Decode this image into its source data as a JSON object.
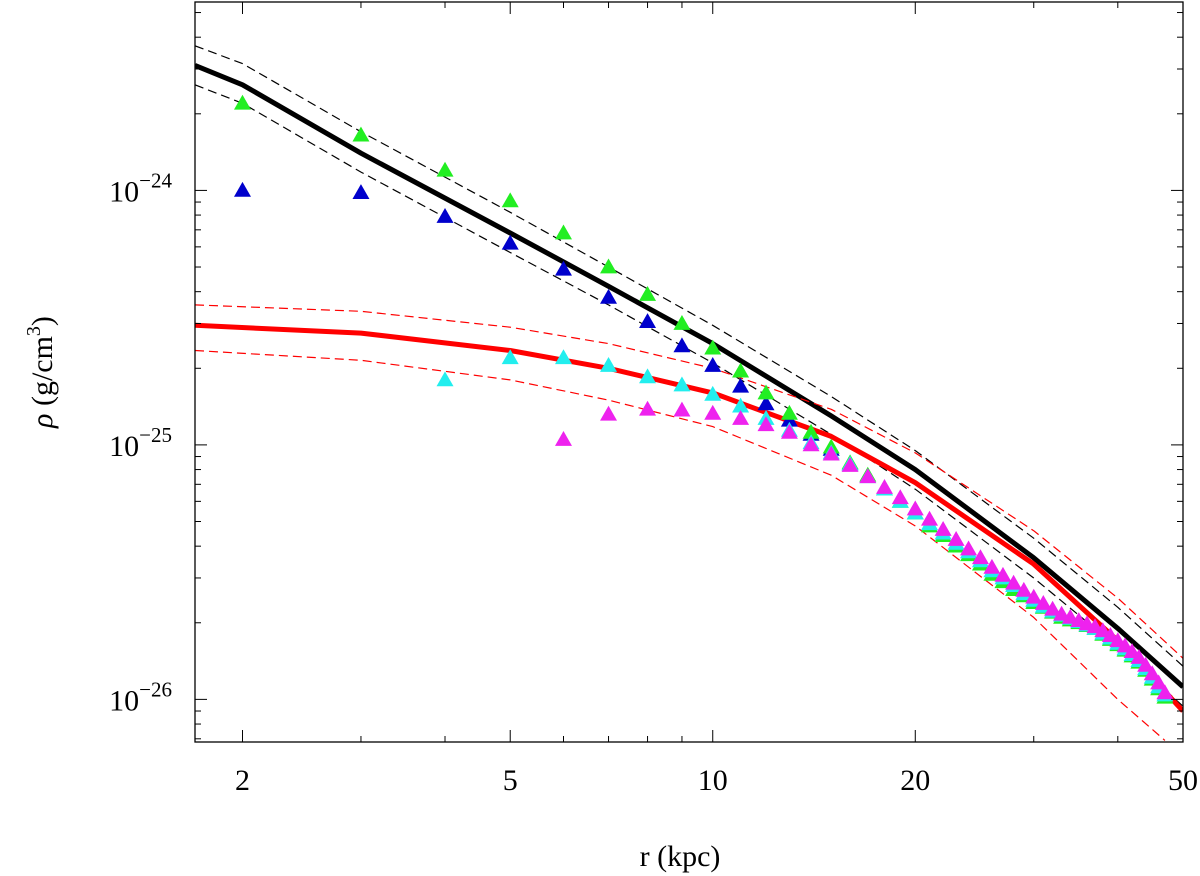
{
  "chart_data": {
    "type": "scatter",
    "xlabel": "r (kpc)",
    "ylabel": {
      "symbol": "ρ",
      "unit": " (g/cm",
      "exp": "3",
      "close": ")"
    },
    "xscale": "log",
    "yscale": "log",
    "xlim": [
      1.7,
      50
    ],
    "ylim": [
      6.8e-27,
      5.5e-24
    ],
    "grid": false,
    "legend": "none",
    "x_ticks": [
      {
        "value": 2,
        "label": "2"
      },
      {
        "value": 5,
        "label": "5"
      },
      {
        "value": 10,
        "label": "10"
      },
      {
        "value": 20,
        "label": "20"
      },
      {
        "value": 50,
        "label": "50"
      }
    ],
    "y_ticks": [
      {
        "value": 1e-24,
        "base": "10",
        "exp": "−24"
      },
      {
        "value": 1e-25,
        "base": "10",
        "exp": "−25"
      },
      {
        "value": 1e-26,
        "base": "10",
        "exp": "−26"
      }
    ],
    "colors": {
      "black_curve": "#000000",
      "red_curve": "#ff0000",
      "green": "#22ee22",
      "blue": "#0000cc",
      "cyan": "#22eeee",
      "magenta": "#ee22ee"
    },
    "curves": [
      {
        "color": "#000000",
        "style": "solid",
        "width": 5,
        "points": [
          [
            1.7,
            3.1e-24
          ],
          [
            2,
            2.6e-24
          ],
          [
            3,
            1.4e-24
          ],
          [
            5,
            6.8e-25
          ],
          [
            7,
            4.2e-25
          ],
          [
            10,
            2.5e-25
          ],
          [
            15,
            1.3e-25
          ],
          [
            20,
            8e-26
          ],
          [
            30,
            3.6e-26
          ],
          [
            40,
            1.9e-26
          ],
          [
            50,
            1.12e-26
          ]
        ]
      },
      {
        "color": "#000000",
        "style": "dashed",
        "width": 1.2,
        "points": [
          [
            1.7,
            3.7e-24
          ],
          [
            2,
            3.15e-24
          ],
          [
            3,
            1.7e-24
          ],
          [
            5,
            8.2e-25
          ],
          [
            7,
            5e-25
          ],
          [
            10,
            2.95e-25
          ],
          [
            15,
            1.55e-25
          ],
          [
            20,
            9.5e-26
          ],
          [
            30,
            4.3e-26
          ],
          [
            40,
            2.3e-26
          ],
          [
            50,
            1.35e-26
          ]
        ]
      },
      {
        "color": "#000000",
        "style": "dashed",
        "width": 1.2,
        "points": [
          [
            1.7,
            2.6e-24
          ],
          [
            2,
            2.2e-24
          ],
          [
            3,
            1.18e-24
          ],
          [
            5,
            5.7e-25
          ],
          [
            7,
            3.55e-25
          ],
          [
            10,
            2.1e-25
          ],
          [
            15,
            1.1e-25
          ],
          [
            20,
            6.7e-26
          ],
          [
            30,
            3e-26
          ],
          [
            40,
            1.6e-26
          ],
          [
            50,
            9.4e-27
          ]
        ]
      },
      {
        "color": "#ff0000",
        "style": "solid",
        "width": 5,
        "points": [
          [
            1.7,
            2.95e-25
          ],
          [
            3,
            2.75e-25
          ],
          [
            5,
            2.35e-25
          ],
          [
            7,
            2e-25
          ],
          [
            10,
            1.6e-25
          ],
          [
            15,
            1.08e-25
          ],
          [
            20,
            7.1e-26
          ],
          [
            30,
            3.4e-26
          ],
          [
            40,
            1.7e-26
          ],
          [
            50,
            9e-27
          ]
        ]
      },
      {
        "color": "#ff0000",
        "style": "dashed",
        "width": 1.2,
        "points": [
          [
            1.7,
            3.55e-25
          ],
          [
            3,
            3.35e-25
          ],
          [
            5,
            2.9e-25
          ],
          [
            7,
            2.5e-25
          ],
          [
            10,
            2e-25
          ],
          [
            15,
            1.38e-25
          ],
          [
            20,
            9.3e-26
          ],
          [
            30,
            4.6e-26
          ],
          [
            40,
            2.5e-26
          ],
          [
            50,
            1.45e-26
          ]
        ]
      },
      {
        "color": "#ff0000",
        "style": "dashed",
        "width": 1.2,
        "points": [
          [
            1.7,
            2.35e-25
          ],
          [
            3,
            2.15e-25
          ],
          [
            5,
            1.8e-25
          ],
          [
            7,
            1.5e-25
          ],
          [
            10,
            1.18e-25
          ],
          [
            15,
            7.6e-26
          ],
          [
            20,
            4.8e-26
          ],
          [
            30,
            2.1e-26
          ],
          [
            40,
            1e-26
          ],
          [
            47,
            6.9e-27
          ]
        ]
      }
    ],
    "series": [
      {
        "color": "#0000cc",
        "points": [
          [
            2,
            1e-24
          ],
          [
            3,
            9.8e-25
          ],
          [
            4,
            7.9e-25
          ],
          [
            5,
            6.2e-25
          ],
          [
            6,
            4.9e-25
          ],
          [
            7,
            3.8e-25
          ],
          [
            8,
            3.05e-25
          ],
          [
            9,
            2.45e-25
          ],
          [
            10,
            2.05e-25
          ],
          [
            11,
            1.7e-25
          ],
          [
            12,
            1.45e-25
          ],
          [
            13,
            1.25e-25
          ],
          [
            14,
            1.1e-25
          ],
          [
            15,
            9.6e-26
          ],
          [
            16,
            8.4e-26
          ]
        ]
      },
      {
        "color": "#22ee22",
        "points": [
          [
            2,
            2.2e-24
          ],
          [
            3,
            1.65e-24
          ],
          [
            4,
            1.2e-24
          ],
          [
            5,
            9.1e-25
          ],
          [
            6,
            6.8e-25
          ],
          [
            7,
            5e-25
          ],
          [
            8,
            3.9e-25
          ],
          [
            9,
            3e-25
          ],
          [
            10,
            2.4e-25
          ],
          [
            11,
            1.95e-25
          ],
          [
            12,
            1.6e-25
          ],
          [
            13,
            1.33e-25
          ],
          [
            14,
            1.12e-25
          ],
          [
            15,
            9.8e-26
          ],
          [
            16,
            8.5e-26
          ],
          [
            17,
            7.6e-26
          ],
          [
            18,
            6.7e-26
          ],
          [
            19,
            6e-26
          ],
          [
            20,
            5.4e-26
          ],
          [
            21,
            4.8e-26
          ],
          [
            22,
            4.4e-26
          ],
          [
            23,
            4e-26
          ],
          [
            24,
            3.7e-26
          ],
          [
            25,
            3.4e-26
          ],
          [
            26,
            3.1e-26
          ],
          [
            27,
            2.9e-26
          ],
          [
            28,
            2.7e-26
          ],
          [
            29,
            2.55e-26
          ],
          [
            30,
            2.4e-26
          ],
          [
            31,
            2.3e-26
          ],
          [
            32,
            2.2e-26
          ],
          [
            33,
            2.1e-26
          ],
          [
            34,
            2.05e-26
          ],
          [
            35,
            2e-26
          ],
          [
            36,
            1.95e-26
          ],
          [
            37,
            1.9e-26
          ],
          [
            38,
            1.8e-26
          ],
          [
            39,
            1.72e-26
          ],
          [
            40,
            1.64e-26
          ],
          [
            41,
            1.56e-26
          ],
          [
            42,
            1.48e-26
          ],
          [
            43,
            1.4e-26
          ],
          [
            44,
            1.3e-26
          ],
          [
            45,
            1.2e-26
          ],
          [
            46,
            1.1e-26
          ],
          [
            47,
            1.02e-26
          ]
        ]
      },
      {
        "color": "#22eeee",
        "points": [
          [
            4,
            1.8e-25
          ],
          [
            5,
            2.2e-25
          ],
          [
            6,
            2.2e-25
          ],
          [
            7,
            2.05e-25
          ],
          [
            8,
            1.85e-25
          ],
          [
            9,
            1.72e-25
          ],
          [
            10,
            1.58e-25
          ],
          [
            11,
            1.42e-25
          ],
          [
            12,
            1.27e-25
          ],
          [
            13,
            1.14e-25
          ],
          [
            14,
            1.02e-25
          ],
          [
            15,
            9.3e-26
          ],
          [
            16,
            8.4e-26
          ],
          [
            17,
            7.5e-26
          ],
          [
            18,
            6.7e-26
          ],
          [
            19,
            6e-26
          ],
          [
            20,
            5.4e-26
          ],
          [
            21,
            4.9e-26
          ],
          [
            22,
            4.5e-26
          ],
          [
            23,
            4.1e-26
          ],
          [
            24,
            3.8e-26
          ],
          [
            25,
            3.5e-26
          ],
          [
            26,
            3.2e-26
          ],
          [
            27,
            3e-26
          ],
          [
            28,
            2.8e-26
          ],
          [
            29,
            2.6e-26
          ],
          [
            30,
            2.45e-26
          ],
          [
            31,
            2.32e-26
          ],
          [
            32,
            2.22e-26
          ],
          [
            33,
            2.14e-26
          ],
          [
            34,
            2.08e-26
          ],
          [
            35,
            2.02e-26
          ],
          [
            36,
            1.96e-26
          ],
          [
            37,
            1.9e-26
          ],
          [
            38,
            1.82e-26
          ],
          [
            39,
            1.74e-26
          ],
          [
            40,
            1.66e-26
          ],
          [
            41,
            1.58e-26
          ],
          [
            42,
            1.5e-26
          ],
          [
            43,
            1.42e-26
          ],
          [
            44,
            1.32e-26
          ],
          [
            45,
            1.22e-26
          ],
          [
            46,
            1.12e-26
          ],
          [
            47,
            1.04e-26
          ]
        ]
      },
      {
        "color": "#ee22ee",
        "points": [
          [
            6,
            1.05e-25
          ],
          [
            7,
            1.32e-25
          ],
          [
            8,
            1.38e-25
          ],
          [
            9,
            1.37e-25
          ],
          [
            10,
            1.33e-25
          ],
          [
            11,
            1.27e-25
          ],
          [
            12,
            1.2e-25
          ],
          [
            13,
            1.12e-25
          ],
          [
            14,
            1e-25
          ],
          [
            15,
            9.2e-26
          ],
          [
            16,
            8.3e-26
          ],
          [
            17,
            7.5e-26
          ],
          [
            18,
            6.8e-26
          ],
          [
            19,
            6.2e-26
          ],
          [
            20,
            5.6e-26
          ],
          [
            21,
            5.1e-26
          ],
          [
            22,
            4.65e-26
          ],
          [
            23,
            4.25e-26
          ],
          [
            24,
            3.9e-26
          ],
          [
            25,
            3.6e-26
          ],
          [
            26,
            3.3e-26
          ],
          [
            27,
            3.07e-26
          ],
          [
            28,
            2.86e-26
          ],
          [
            29,
            2.68e-26
          ],
          [
            30,
            2.52e-26
          ],
          [
            31,
            2.38e-26
          ],
          [
            32,
            2.26e-26
          ],
          [
            33,
            2.16e-26
          ],
          [
            34,
            2.1e-26
          ],
          [
            35,
            2.04e-26
          ],
          [
            36,
            1.98e-26
          ],
          [
            37,
            1.93e-26
          ],
          [
            38,
            1.86e-26
          ],
          [
            39,
            1.78e-26
          ],
          [
            40,
            1.7e-26
          ],
          [
            41,
            1.62e-26
          ],
          [
            42,
            1.54e-26
          ],
          [
            43,
            1.46e-26
          ],
          [
            44,
            1.36e-26
          ],
          [
            45,
            1.26e-26
          ],
          [
            46,
            1.16e-26
          ],
          [
            47,
            1.06e-26
          ]
        ]
      }
    ]
  }
}
